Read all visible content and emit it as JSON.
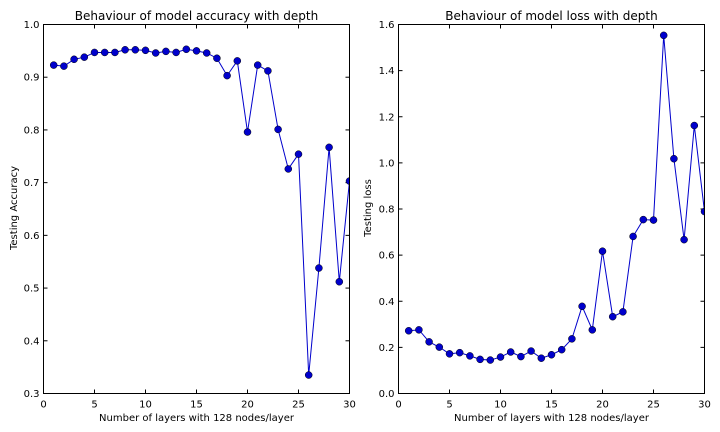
{
  "chart_data": [
    {
      "type": "line",
      "title": "Behaviour of model accuracy with depth",
      "xlabel": "Number of layers with 128 nodes/layer",
      "ylabel": "Testing Accuracy",
      "xlim": [
        0,
        30
      ],
      "ylim": [
        0.3,
        1.0
      ],
      "xticks": [
        0,
        5,
        10,
        15,
        20,
        25,
        30
      ],
      "yticks": [
        0.3,
        0.4,
        0.5,
        0.6,
        0.7,
        0.8,
        0.9,
        1.0
      ],
      "xtick_labels": [
        "0",
        "5",
        "10",
        "15",
        "20",
        "25",
        "30"
      ],
      "ytick_labels": [
        "0.3",
        "0.4",
        "0.5",
        "0.6",
        "0.7",
        "0.8",
        "0.9",
        "1.0"
      ],
      "grid": false,
      "color": "#0000cc",
      "x": [
        1,
        2,
        3,
        4,
        5,
        6,
        7,
        8,
        9,
        10,
        11,
        12,
        13,
        14,
        15,
        16,
        17,
        18,
        19,
        20,
        21,
        22,
        23,
        24,
        25,
        26,
        27,
        28,
        29,
        30
      ],
      "y": [
        0.923,
        0.921,
        0.934,
        0.938,
        0.947,
        0.947,
        0.947,
        0.952,
        0.952,
        0.951,
        0.946,
        0.949,
        0.947,
        0.953,
        0.95,
        0.946,
        0.936,
        0.903,
        0.931,
        0.796,
        0.923,
        0.912,
        0.801,
        0.726,
        0.754,
        0.335,
        0.538,
        0.767,
        0.512,
        0.703
      ]
    },
    {
      "type": "line",
      "title": "Behaviour of model loss with depth",
      "xlabel": "Number of layers with 128 nodes/layer",
      "ylabel": "Testing loss",
      "xlim": [
        0,
        30
      ],
      "ylim": [
        0.0,
        1.6
      ],
      "xticks": [
        0,
        5,
        10,
        15,
        20,
        25,
        30
      ],
      "yticks": [
        0.0,
        0.2,
        0.4,
        0.6,
        0.8,
        1.0,
        1.2,
        1.4,
        1.6
      ],
      "xtick_labels": [
        "0",
        "5",
        "10",
        "15",
        "20",
        "25",
        "30"
      ],
      "ytick_labels": [
        "0.0",
        "0.2",
        "0.4",
        "0.6",
        "0.8",
        "1.0",
        "1.2",
        "1.4",
        "1.6"
      ],
      "grid": false,
      "color": "#0000cc",
      "x": [
        1,
        2,
        3,
        4,
        5,
        6,
        7,
        8,
        9,
        10,
        11,
        12,
        13,
        14,
        15,
        16,
        17,
        18,
        19,
        20,
        21,
        22,
        23,
        24,
        25,
        26,
        27,
        28,
        29,
        30
      ],
      "y": [
        0.272,
        0.276,
        0.224,
        0.201,
        0.172,
        0.177,
        0.163,
        0.148,
        0.145,
        0.158,
        0.18,
        0.16,
        0.184,
        0.153,
        0.168,
        0.19,
        0.237,
        0.378,
        0.276,
        0.617,
        0.333,
        0.354,
        0.681,
        0.754,
        0.752,
        1.553,
        1.018,
        0.667,
        1.162,
        0.789
      ]
    }
  ]
}
